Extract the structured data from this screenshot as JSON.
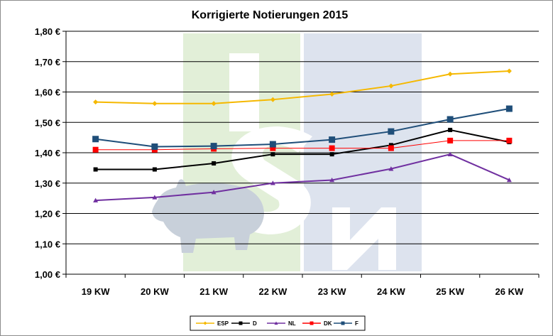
{
  "chart_data": {
    "type": "line",
    "title": "Korrigierte Notierungen 2015",
    "categories": [
      "19 KW",
      "20 KW",
      "21 KW",
      "22 KW",
      "23 KW",
      "24 KW",
      "25 KW",
      "26 KW"
    ],
    "ylim": [
      1.0,
      1.8
    ],
    "yticks": [
      1.0,
      1.1,
      1.2,
      1.3,
      1.4,
      1.5,
      1.6,
      1.7,
      1.8
    ],
    "ytick_labels": [
      "1,00 €",
      "1,10 €",
      "1,20 €",
      "1,30 €",
      "1,40 €",
      "1,50 €",
      "1,60 €",
      "1,70 €",
      "1,80 €"
    ],
    "grid": "horizontal",
    "legend_position": "bottom",
    "series": [
      {
        "name": "ESP",
        "color": "#f5b800",
        "marker": "diamond",
        "values": [
          1.567,
          1.562,
          1.562,
          1.575,
          1.593,
          1.62,
          1.659,
          1.669
        ]
      },
      {
        "name": "D",
        "color": "#000000",
        "marker": "square",
        "values": [
          1.345,
          1.345,
          1.365,
          1.395,
          1.395,
          1.425,
          1.475,
          1.435
        ]
      },
      {
        "name": "NL",
        "color": "#7030a0",
        "marker": "triangle",
        "values": [
          1.243,
          1.253,
          1.27,
          1.3,
          1.31,
          1.347,
          1.395,
          1.31
        ]
      },
      {
        "name": "DK",
        "color": "#ff0000",
        "marker": "square",
        "values": [
          1.41,
          1.41,
          1.413,
          1.415,
          1.415,
          1.415,
          1.44,
          1.44
        ]
      },
      {
        "name": "F",
        "color": "#1f4e79",
        "marker": "square",
        "values": [
          1.445,
          1.42,
          1.422,
          1.428,
          1.443,
          1.47,
          1.51,
          1.545
        ]
      }
    ]
  }
}
